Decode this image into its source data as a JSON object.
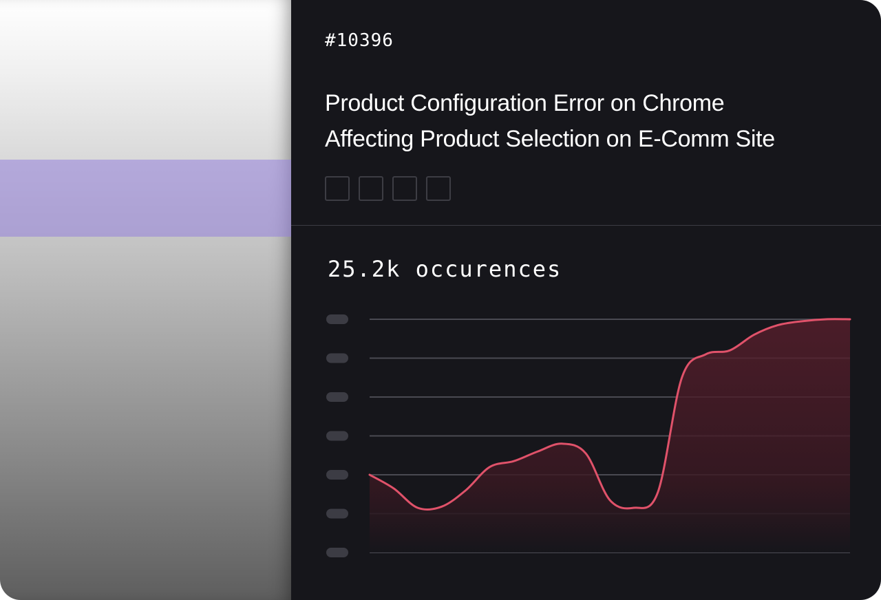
{
  "issue": {
    "id": "#10396",
    "title_line_1": "Product Configuration Error on Chrome",
    "title_line_2": "Affecting Product Selection on E-Comm Site",
    "tag_count": 4
  },
  "metric": {
    "occurrences_label": "25.2k occurences"
  },
  "colors": {
    "card_background": "#16161b",
    "line": "#e0526a",
    "grid": "#4a4a52",
    "highlight": "#a89ae0"
  },
  "chart_data": {
    "type": "area",
    "title": "",
    "xlabel": "",
    "ylabel": "",
    "ylim": [
      0,
      6
    ],
    "gridlines": 7,
    "grid": true,
    "y_tick_labels_redacted": true,
    "series": [
      {
        "x": [
          0,
          5,
          10,
          15,
          20,
          25,
          30,
          35,
          40,
          45,
          50,
          55,
          60,
          65,
          70,
          75,
          80,
          85,
          90,
          95,
          100
        ],
        "values": [
          2.0,
          1.65,
          1.15,
          1.18,
          1.6,
          2.2,
          2.35,
          2.6,
          2.8,
          2.55,
          1.35,
          1.15,
          1.55,
          4.5,
          5.1,
          5.2,
          5.6,
          5.85,
          5.95,
          6.0,
          6.0
        ]
      }
    ]
  }
}
